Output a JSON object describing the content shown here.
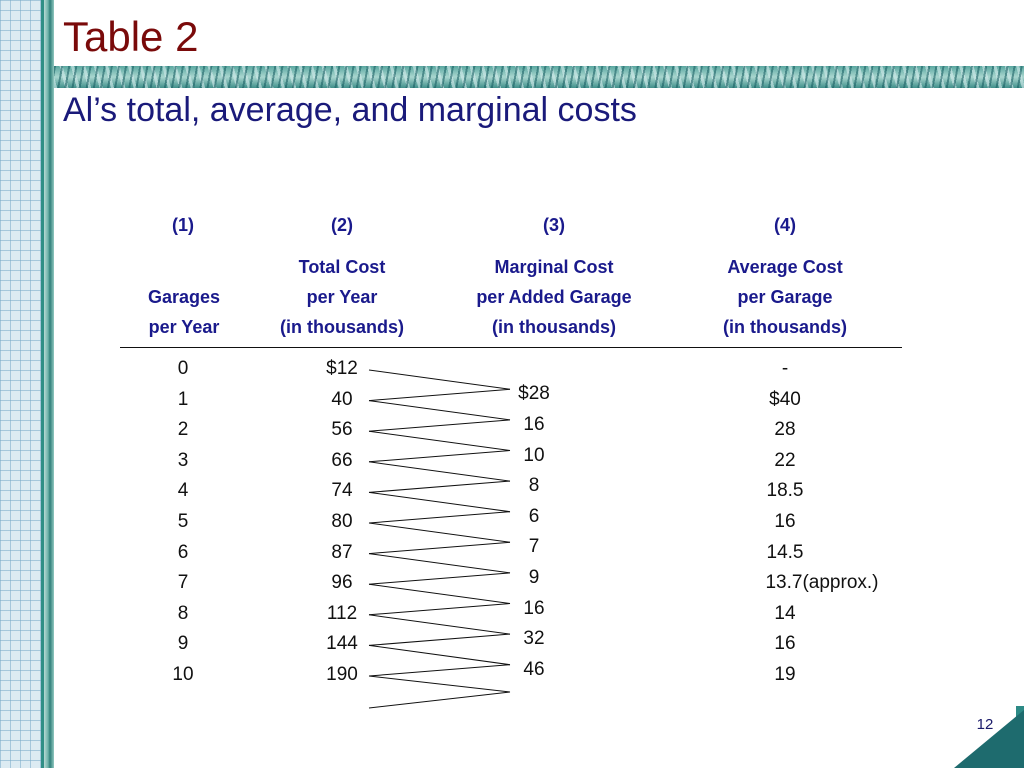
{
  "slide": {
    "title": "Table 2",
    "subtitle": "Al’s total, average, and marginal costs",
    "page_number": "12"
  },
  "table": {
    "columns": [
      {
        "number": "(1)",
        "header": [
          "",
          "Garages",
          "per Year"
        ]
      },
      {
        "number": "(2)",
        "header": [
          "Total Cost",
          "per Year",
          "(in thousands)"
        ]
      },
      {
        "number": "(3)",
        "header": [
          "Marginal Cost",
          "per Added Garage",
          "(in thousands)"
        ]
      },
      {
        "number": "(4)",
        "header": [
          "Average Cost",
          "per Garage",
          "(in thousands)"
        ]
      }
    ],
    "garages": [
      "0",
      "1",
      "2",
      "3",
      "4",
      "5",
      "6",
      "7",
      "8",
      "9",
      "10"
    ],
    "total_cost": [
      "$12",
      "40",
      "56",
      "66",
      "74",
      "80",
      "87",
      "96",
      "112",
      "144",
      "190"
    ],
    "marginal_cost": [
      "$28",
      "16",
      "10",
      "8",
      "6",
      "7",
      "9",
      "16",
      "32",
      "46"
    ],
    "average_cost": [
      "-",
      "$40",
      "28",
      "22",
      "18.5",
      "16",
      "14.5",
      "13.7(approx.)",
      "14",
      "16",
      "19"
    ]
  },
  "colors": {
    "title": "#7a0a0a",
    "subtitle": "#1a1a7a",
    "header": "#1a1a8c"
  }
}
